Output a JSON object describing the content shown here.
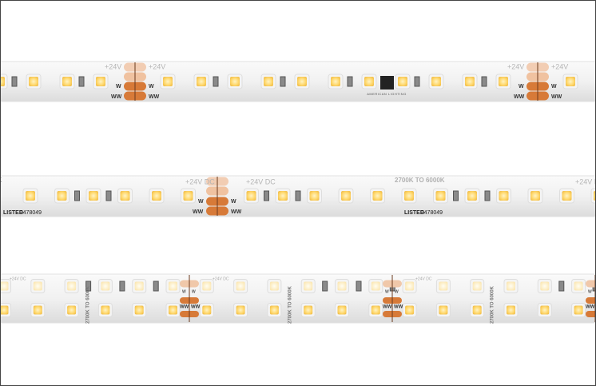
{
  "strip1": {
    "voltage": "+24V",
    "pad_top": "W",
    "pad_bottom": "WW",
    "brand": "AMERICAN LIGHTING"
  },
  "strip2": {
    "voltage": "+24V DC",
    "cct": "2700K TO 6000K",
    "listing": "LISTED",
    "file": "E478049",
    "pad_top": "W",
    "pad_bottom": "WW"
  },
  "strip3": {
    "voltage": "+24V DC",
    "cct": "2700K TO 6000K",
    "pad_top": "W",
    "pad_bottom": "WW"
  }
}
